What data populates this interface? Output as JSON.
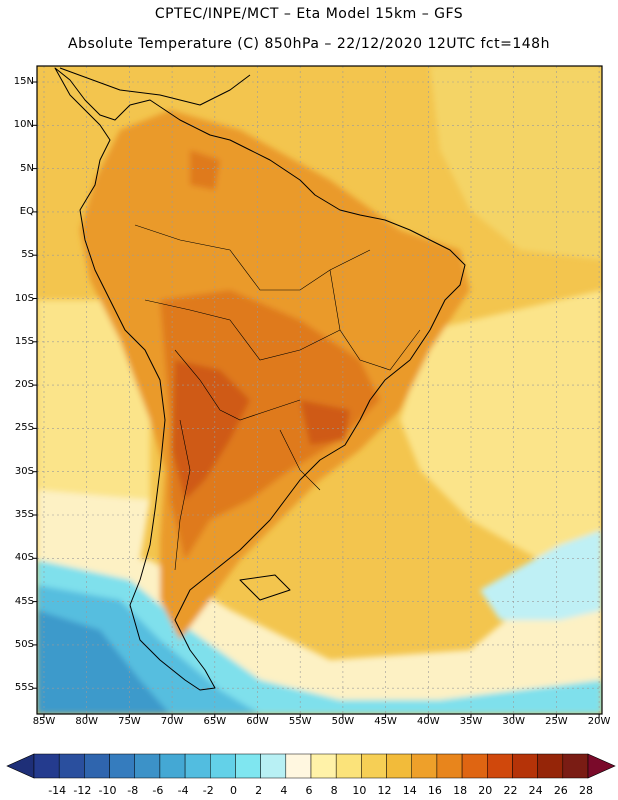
{
  "header": {
    "line1": "CPTEC/INPE/MCT –  Eta Model 15km – GFS",
    "line2": "Absolute Temperature (C) 850hPa – 22/12/2020 12UTC fct=148h"
  },
  "axes": {
    "lat_labels": [
      "15N",
      "10N",
      "5N",
      "EQ",
      "5S",
      "10S",
      "15S",
      "20S",
      "25S",
      "30S",
      "35S",
      "40S",
      "45S",
      "50S",
      "55S"
    ],
    "lon_labels": [
      "85W",
      "80W",
      "75W",
      "70W",
      "65W",
      "60W",
      "55W",
      "50W",
      "45W",
      "40W",
      "35W",
      "30W",
      "25W",
      "20W"
    ]
  },
  "colorbar": {
    "labels": [
      "-14",
      "-12",
      "-10",
      "-8",
      "-6",
      "-4",
      "-2",
      "0",
      "2",
      "4",
      "6",
      "8",
      "10",
      "12",
      "14",
      "16",
      "18",
      "20",
      "22",
      "24",
      "26",
      "28"
    ],
    "colors": [
      "#243b8e",
      "#2a4f9e",
      "#2f65ae",
      "#357cbe",
      "#3c92c8",
      "#44a8d4",
      "#52bde0",
      "#63d1e8",
      "#7fe6f0",
      "#b8f0f4",
      "#fff7e0",
      "#fff2a8",
      "#fbe37a",
      "#f6cf55",
      "#f2bb3a",
      "#eea02a",
      "#e8851c",
      "#df6512",
      "#d0480c",
      "#b53308",
      "#952508",
      "#7a1c14"
    ],
    "under_color": "#1e2f78",
    "over_color": "#7a0a2a"
  },
  "map_colors": {
    "background": "#f3c54e",
    "ocean_warm": "#f4d466",
    "ocean_cool": "#fbe48a",
    "pale": "#fdf1c4",
    "cyan_light": "#bff0f5",
    "cyan": "#7fe0ec",
    "blue_mid": "#56bedf",
    "blue_dark": "#3c9acb",
    "land_warm": "#ea9a2a",
    "land_hot": "#df7a1a",
    "land_hotter": "#cf5a12"
  }
}
